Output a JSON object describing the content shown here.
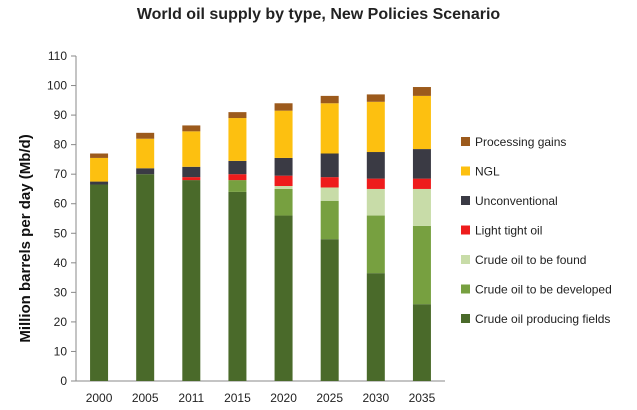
{
  "chart_data": {
    "type": "bar",
    "stacked": true,
    "title": "World oil supply by type, New Policies Scenario",
    "xlabel": "",
    "ylabel": "Million barrels per day (Mb/d)",
    "ylim": [
      0,
      110
    ],
    "yticks": [
      0,
      10,
      20,
      30,
      40,
      50,
      60,
      70,
      80,
      90,
      100,
      110
    ],
    "grid": false,
    "legend_position": "right",
    "categories": [
      "2000",
      "2005",
      "2011",
      "2015",
      "2020",
      "2025",
      "2030",
      "2035"
    ],
    "series": [
      {
        "name": "Crude oil producing fields",
        "color": "#4a6a2a",
        "values": [
          66.5,
          70,
          68,
          64,
          56,
          48,
          36.5,
          26
        ]
      },
      {
        "name": "Crude oil  to be developed",
        "color": "#77a040",
        "values": [
          0,
          0,
          0,
          4,
          9,
          13,
          19.5,
          26.5
        ]
      },
      {
        "name": "Crude oil to be found",
        "color": "#c8dca8",
        "values": [
          0,
          0,
          0,
          0,
          1,
          4.5,
          9,
          12.5
        ]
      },
      {
        "name": "Light tight oil",
        "color": "#ee1c1c",
        "values": [
          0,
          0,
          1,
          2,
          3.5,
          3.5,
          3.5,
          3.5
        ]
      },
      {
        "name": "Unconventional",
        "color": "#3a3a44",
        "values": [
          1,
          2,
          3.5,
          4.5,
          6,
          8,
          9,
          10
        ]
      },
      {
        "name": "NGL",
        "color": "#fdc010",
        "values": [
          8,
          10,
          12,
          14.5,
          16,
          17,
          17,
          18
        ]
      },
      {
        "name": "Processing gains",
        "color": "#9c5a1c",
        "values": [
          1.5,
          2,
          2,
          2,
          2.5,
          2.5,
          2.5,
          3
        ]
      }
    ]
  }
}
